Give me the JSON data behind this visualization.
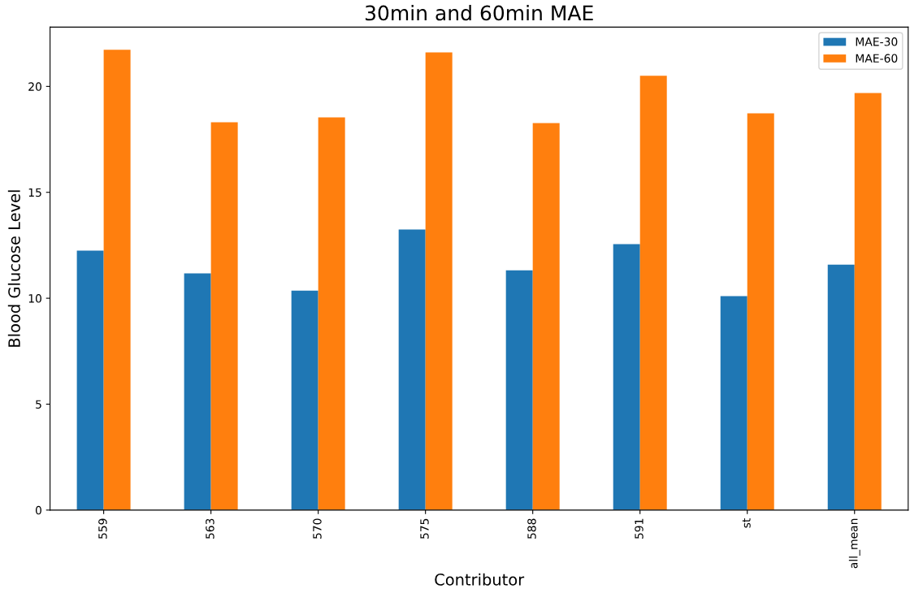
{
  "chart_data": {
    "type": "bar",
    "title": "30min and 60min MAE",
    "xlabel": "Contributor",
    "ylabel": "Blood Glucose Level",
    "categories": [
      "559",
      "563",
      "570",
      "575",
      "588",
      "591",
      "st",
      "all_mean"
    ],
    "series": [
      {
        "name": "MAE-30",
        "color": "#1f77b4",
        "values": [
          12.25,
          11.17,
          10.36,
          13.24,
          11.32,
          12.55,
          10.1,
          11.59
        ]
      },
      {
        "name": "MAE-60",
        "color": "#ff7f0e",
        "values": [
          21.73,
          18.31,
          18.54,
          21.61,
          18.27,
          20.5,
          18.73,
          19.69
        ]
      }
    ],
    "ylim": [
      0,
      22.8
    ],
    "yticks": [
      0,
      5,
      10,
      15,
      20
    ],
    "grid": false,
    "legend": "top right"
  }
}
